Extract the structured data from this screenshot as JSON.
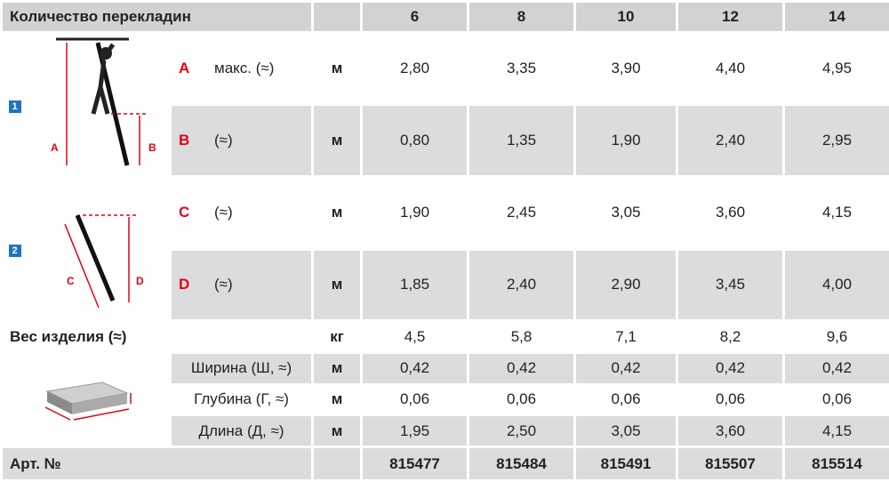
{
  "header": {
    "title": "Количество перекладин",
    "columns": [
      "6",
      "8",
      "10",
      "12",
      "14"
    ]
  },
  "sections": [
    {
      "badge": "1"
    },
    {
      "badge": "2"
    }
  ],
  "rows": [
    {
      "letter": "A",
      "label": "макс. (≈)",
      "unit": "м",
      "values": [
        "2,80",
        "3,35",
        "3,90",
        "4,40",
        "4,95"
      ]
    },
    {
      "letter": "B",
      "label": "(≈)",
      "unit": "м",
      "values": [
        "0,80",
        "1,35",
        "1,90",
        "2,40",
        "2,95"
      ]
    },
    {
      "letter": "C",
      "label": "(≈)",
      "unit": "м",
      "values": [
        "1,90",
        "2,45",
        "3,05",
        "3,60",
        "4,15"
      ]
    },
    {
      "letter": "D",
      "label": "(≈)",
      "unit": "м",
      "values": [
        "1,85",
        "2,40",
        "2,90",
        "3,45",
        "4,00"
      ]
    }
  ],
  "weight": {
    "label": "Вес изделия (≈)",
    "unit": "кг",
    "values": [
      "4,5",
      "5,8",
      "7,1",
      "8,2",
      "9,6"
    ]
  },
  "dimensions": [
    {
      "label": "Ширина (Ш, ≈)",
      "unit": "м",
      "values": [
        "0,42",
        "0,42",
        "0,42",
        "0,42",
        "0,42"
      ]
    },
    {
      "label": "Глубина (Г, ≈)",
      "unit": "м",
      "values": [
        "0,06",
        "0,06",
        "0,06",
        "0,06",
        "0,06"
      ]
    },
    {
      "label": "Длина (Д, ≈)",
      "unit": "м",
      "values": [
        "1,95",
        "2,50",
        "3,05",
        "3,60",
        "4,15"
      ]
    }
  ],
  "article": {
    "label": "Арт. №",
    "values": [
      "815477",
      "815484",
      "815491",
      "815507",
      "815514"
    ]
  }
}
